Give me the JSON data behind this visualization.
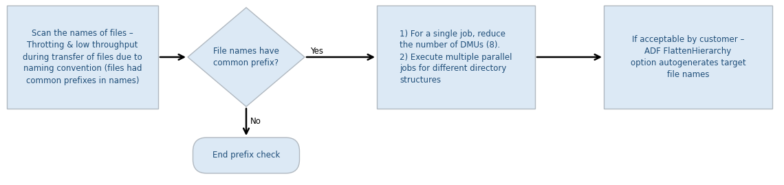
{
  "bg_color": "#ffffff",
  "box_fill": "#dce9f5",
  "box_edge": "#b0b8c0",
  "text_color": "#1f4e79",
  "arrow_color": "#000000",
  "diamond_fill": "#dce9f5",
  "diamond_edge": "#b0b8c0",
  "rounded_fill": "#dce9f5",
  "rounded_edge": "#b0b8c0",
  "box1_text": "Scan the names of files –\nThrotting & low throughput\nduring transfer of files due to\nnaming convention (files had\ncommon prefixes in names)",
  "diamond_text": "File names have\ncommon prefix?",
  "box2_text": "1) For a single job, reduce\nthe number of DMUs (8).\n2) Execute multiple parallel\njobs for different directory\nstructures",
  "box3_text": "If acceptable by customer –\nADF FlattenHierarchy\noption autogenerates target\nfile names",
  "rounded_text": "End prefix check",
  "yes_label": "Yes",
  "no_label": "No",
  "font_size": 8.5,
  "label_font_size": 8.5
}
